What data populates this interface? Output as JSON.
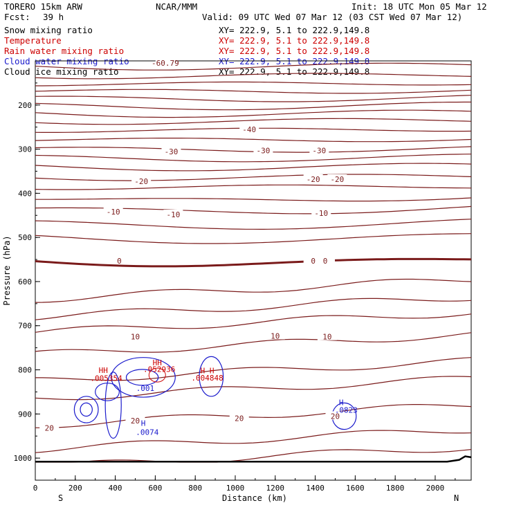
{
  "header": {
    "model": "TORERO  15km ARW",
    "center": "NCAR/MMM",
    "init": "Init: 18 UTC Mon 05 Mar 12",
    "fcst_label": "Fcst:",
    "fcst_value": "39 h",
    "valid": "Valid: 09 UTC Wed 07 Mar 12 (03 CST Wed 07 Mar 12)"
  },
  "fields": [
    {
      "name": "Snow mixing ratio",
      "xy": "XY= 222.9,  5.1 to 222.9,149.8",
      "color": "#000000"
    },
    {
      "name": "Temperature",
      "xy": "XY= 222.9,  5.1 to 222.9,149.8",
      "color": "#cc0000"
    },
    {
      "name": "Rain water mixing ratio",
      "xy": "XY= 222.9,  5.1 to 222.9,149.8",
      "color": "#cc0000"
    },
    {
      "name": "Cloud water mixing ratio",
      "xy": "XY= 222.9,  5.1 to 222.9,149.8",
      "color": "#1a1acc"
    },
    {
      "name": "Cloud ice mixing ratio",
      "xy": "XY= 222.9,  5.1 to 222.9,149.8",
      "color": "#000000"
    }
  ],
  "chart_data": {
    "type": "contour cross-section",
    "xlabel": "Distance (km)",
    "ylabel": "Pressure (hPa)",
    "xlim": [
      0,
      2180
    ],
    "ylim": [
      100,
      1050
    ],
    "x_ticks": [
      "0",
      "200",
      "400",
      "600",
      "800",
      "1000",
      "1200",
      "1400",
      "1600",
      "1800",
      "2000"
    ],
    "y_ticks": [
      "200",
      "300",
      "400",
      "500",
      "600",
      "700",
      "800",
      "900",
      "1000"
    ],
    "y_log": false,
    "grid": false,
    "left_end": "S",
    "right_end": "N",
    "temperature_contours": {
      "color": "#7a1a1a",
      "interval_c": 5,
      "labels": [
        {
          "text": "-60.79",
          "x": 650,
          "p": 105
        },
        {
          "text": "-40",
          "x": 1070,
          "p": 255
        },
        {
          "text": "-30",
          "x": 680,
          "p": 305
        },
        {
          "text": "-30",
          "x": 1140,
          "p": 303
        },
        {
          "text": "-30",
          "x": 1420,
          "p": 303
        },
        {
          "text": "-20",
          "x": 530,
          "p": 373
        },
        {
          "text": "-20",
          "x": 1390,
          "p": 368
        },
        {
          "text": "-20",
          "x": 1510,
          "p": 368
        },
        {
          "text": "-10",
          "x": 390,
          "p": 442
        },
        {
          "text": "-10",
          "x": 690,
          "p": 448
        },
        {
          "text": "-10",
          "x": 1430,
          "p": 445
        },
        {
          "text": "0",
          "x": 420,
          "p": 553
        },
        {
          "text": "0",
          "x": 1390,
          "p": 553
        },
        {
          "text": "0",
          "x": 1450,
          "p": 553
        },
        {
          "text": "10",
          "x": 500,
          "p": 725
        },
        {
          "text": "10",
          "x": 1200,
          "p": 723
        },
        {
          "text": "10",
          "x": 1460,
          "p": 725
        },
        {
          "text": "20",
          "x": 70,
          "p": 932
        },
        {
          "text": "20",
          "x": 500,
          "p": 915
        },
        {
          "text": "20",
          "x": 1020,
          "p": 910
        },
        {
          "text": "20",
          "x": 1500,
          "p": 905
        }
      ]
    },
    "cloud_water_labels": [
      {
        "text": "H",
        "x": 540,
        "p": 927
      },
      {
        "text": ".0074",
        "x": 560,
        "p": 947
      },
      {
        "text": ".001",
        "x": 550,
        "p": 848
      },
      {
        "text": "H",
        "x": 1530,
        "p": 880
      },
      {
        "text": ".0823",
        "x": 1555,
        "p": 897
      }
    ],
    "rain_water_labels": [
      {
        "text": "HH",
        "x": 340,
        "p": 807
      },
      {
        "text": ".005354",
        "x": 355,
        "p": 825
      },
      {
        "text": "HH",
        "x": 610,
        "p": 790
      },
      {
        "text": ".052936",
        "x": 620,
        "p": 805
      },
      {
        "text": "H H",
        "x": 860,
        "p": 808
      },
      {
        "text": ".004848",
        "x": 860,
        "p": 824
      }
    ]
  }
}
